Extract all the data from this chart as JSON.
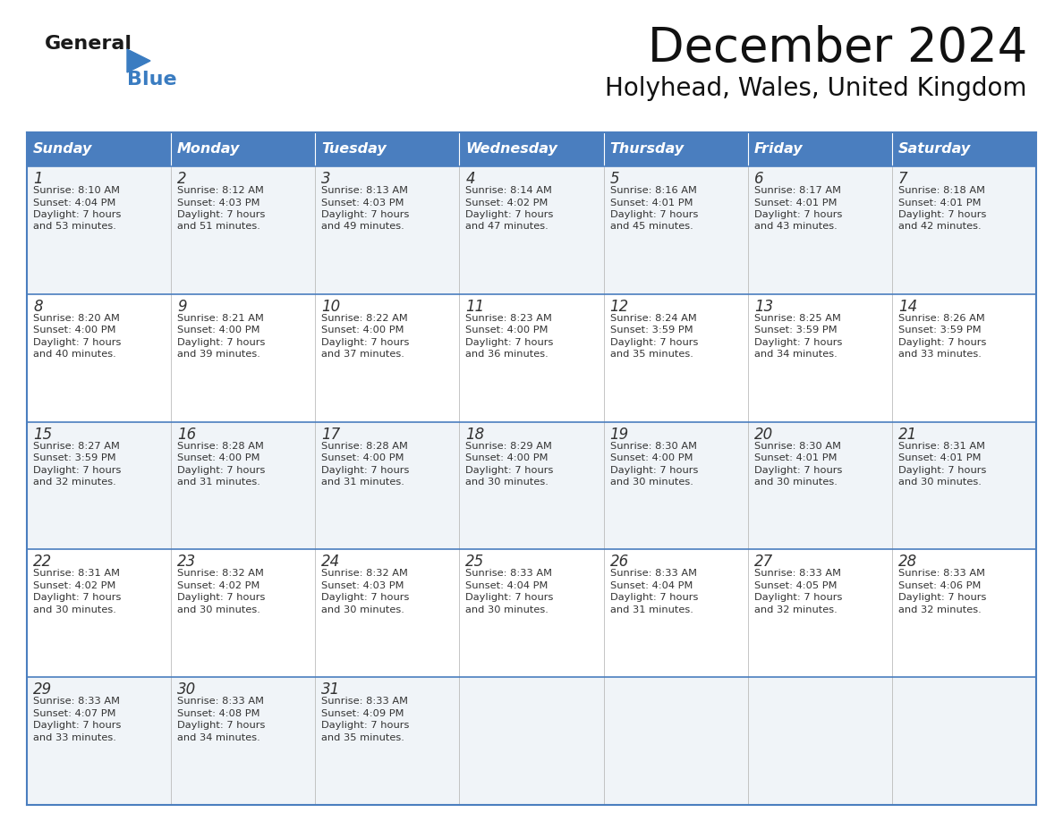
{
  "title": "December 2024",
  "subtitle": "Holyhead, Wales, United Kingdom",
  "days_of_week": [
    "Sunday",
    "Monday",
    "Tuesday",
    "Wednesday",
    "Thursday",
    "Friday",
    "Saturday"
  ],
  "header_bg": "#4a7ebf",
  "header_text": "#FFFFFF",
  "row_bg_light": "#f0f4f8",
  "row_bg_white": "#FFFFFF",
  "border_color": "#4a7ebf",
  "text_color": "#333333",
  "logo_text_color": "#1a1a1a",
  "logo_blue_color": "#3a7cc1",
  "calendar_data": [
    [
      {
        "day": "1",
        "sunrise": "8:10 AM",
        "sunset": "4:04 PM",
        "daylight_min": "53"
      },
      {
        "day": "2",
        "sunrise": "8:12 AM",
        "sunset": "4:03 PM",
        "daylight_min": "51"
      },
      {
        "day": "3",
        "sunrise": "8:13 AM",
        "sunset": "4:03 PM",
        "daylight_min": "49"
      },
      {
        "day": "4",
        "sunrise": "8:14 AM",
        "sunset": "4:02 PM",
        "daylight_min": "47"
      },
      {
        "day": "5",
        "sunrise": "8:16 AM",
        "sunset": "4:01 PM",
        "daylight_min": "45"
      },
      {
        "day": "6",
        "sunrise": "8:17 AM",
        "sunset": "4:01 PM",
        "daylight_min": "43"
      },
      {
        "day": "7",
        "sunrise": "8:18 AM",
        "sunset": "4:01 PM",
        "daylight_min": "42"
      }
    ],
    [
      {
        "day": "8",
        "sunrise": "8:20 AM",
        "sunset": "4:00 PM",
        "daylight_min": "40"
      },
      {
        "day": "9",
        "sunrise": "8:21 AM",
        "sunset": "4:00 PM",
        "daylight_min": "39"
      },
      {
        "day": "10",
        "sunrise": "8:22 AM",
        "sunset": "4:00 PM",
        "daylight_min": "37"
      },
      {
        "day": "11",
        "sunrise": "8:23 AM",
        "sunset": "4:00 PM",
        "daylight_min": "36"
      },
      {
        "day": "12",
        "sunrise": "8:24 AM",
        "sunset": "3:59 PM",
        "daylight_min": "35"
      },
      {
        "day": "13",
        "sunrise": "8:25 AM",
        "sunset": "3:59 PM",
        "daylight_min": "34"
      },
      {
        "day": "14",
        "sunrise": "8:26 AM",
        "sunset": "3:59 PM",
        "daylight_min": "33"
      }
    ],
    [
      {
        "day": "15",
        "sunrise": "8:27 AM",
        "sunset": "3:59 PM",
        "daylight_min": "32"
      },
      {
        "day": "16",
        "sunrise": "8:28 AM",
        "sunset": "4:00 PM",
        "daylight_min": "31"
      },
      {
        "day": "17",
        "sunrise": "8:28 AM",
        "sunset": "4:00 PM",
        "daylight_min": "31"
      },
      {
        "day": "18",
        "sunrise": "8:29 AM",
        "sunset": "4:00 PM",
        "daylight_min": "30"
      },
      {
        "day": "19",
        "sunrise": "8:30 AM",
        "sunset": "4:00 PM",
        "daylight_min": "30"
      },
      {
        "day": "20",
        "sunrise": "8:30 AM",
        "sunset": "4:01 PM",
        "daylight_min": "30"
      },
      {
        "day": "21",
        "sunrise": "8:31 AM",
        "sunset": "4:01 PM",
        "daylight_min": "30"
      }
    ],
    [
      {
        "day": "22",
        "sunrise": "8:31 AM",
        "sunset": "4:02 PM",
        "daylight_min": "30"
      },
      {
        "day": "23",
        "sunrise": "8:32 AM",
        "sunset": "4:02 PM",
        "daylight_min": "30"
      },
      {
        "day": "24",
        "sunrise": "8:32 AM",
        "sunset": "4:03 PM",
        "daylight_min": "30"
      },
      {
        "day": "25",
        "sunrise": "8:33 AM",
        "sunset": "4:04 PM",
        "daylight_min": "30"
      },
      {
        "day": "26",
        "sunrise": "8:33 AM",
        "sunset": "4:04 PM",
        "daylight_min": "31"
      },
      {
        "day": "27",
        "sunrise": "8:33 AM",
        "sunset": "4:05 PM",
        "daylight_min": "32"
      },
      {
        "day": "28",
        "sunrise": "8:33 AM",
        "sunset": "4:06 PM",
        "daylight_min": "32"
      }
    ],
    [
      {
        "day": "29",
        "sunrise": "8:33 AM",
        "sunset": "4:07 PM",
        "daylight_min": "33"
      },
      {
        "day": "30",
        "sunrise": "8:33 AM",
        "sunset": "4:08 PM",
        "daylight_min": "34"
      },
      {
        "day": "31",
        "sunrise": "8:33 AM",
        "sunset": "4:09 PM",
        "daylight_min": "35"
      },
      null,
      null,
      null,
      null
    ]
  ],
  "fig_width": 11.88,
  "fig_height": 9.18,
  "dpi": 100
}
